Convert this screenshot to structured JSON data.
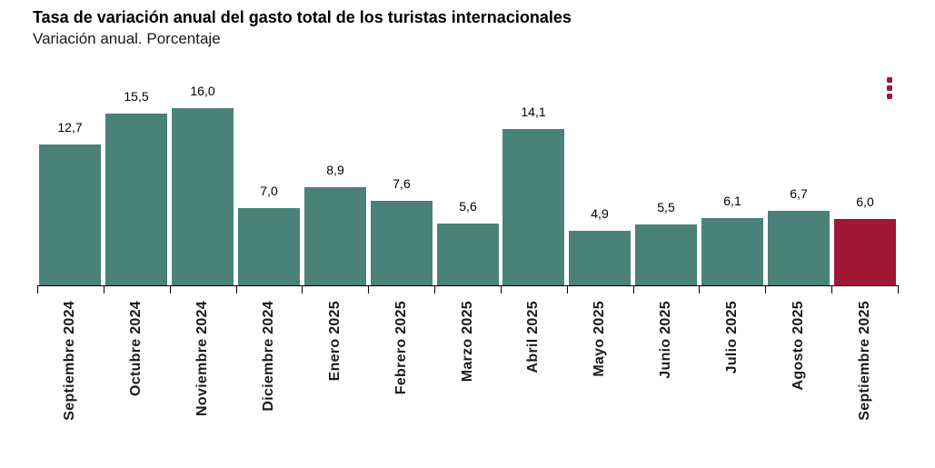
{
  "header": {
    "title": "Tasa de variación anual del gasto total de los turistas internacionales",
    "subtitle": "Variación anual. Porcentaje"
  },
  "toolbar": {
    "menu_icon": "kebab-menu-icon",
    "menu_color": "#9e1734"
  },
  "chart_data": {
    "type": "bar",
    "title": "Tasa de variación anual del gasto total de los turistas internacionales",
    "subtitle": "Variación anual. Porcentaje",
    "xlabel": "",
    "ylabel": "",
    "categories": [
      "Septiembre 2024",
      "Octubre 2024",
      "Noviembre 2024",
      "Diciembre 2024",
      "Enero 2025",
      "Febrero 2025",
      "Marzo 2025",
      "Abril 2025",
      "Mayo 2025",
      "Junio 2025",
      "Julio 2025",
      "Agosto 2025",
      "Septiembre 2025"
    ],
    "values": [
      12.7,
      15.5,
      16.0,
      7.0,
      8.9,
      7.6,
      5.6,
      14.1,
      4.9,
      5.5,
      6.1,
      6.7,
      6.0
    ],
    "value_labels": [
      "12,7",
      "15,5",
      "16,0",
      "7,0",
      "8,9",
      "7,6",
      "5,6",
      "14,1",
      "4,9",
      "5,5",
      "6,1",
      "6,7",
      "6,0"
    ],
    "ylim": [
      0,
      16
    ],
    "grid": false,
    "legend": "none",
    "value_labels_shown": true,
    "x_tick_rotation": 90,
    "bar_color": "#4a8278",
    "highlight_color": "#9e1734",
    "highlight_index": 12,
    "axis_color": "#000000"
  }
}
